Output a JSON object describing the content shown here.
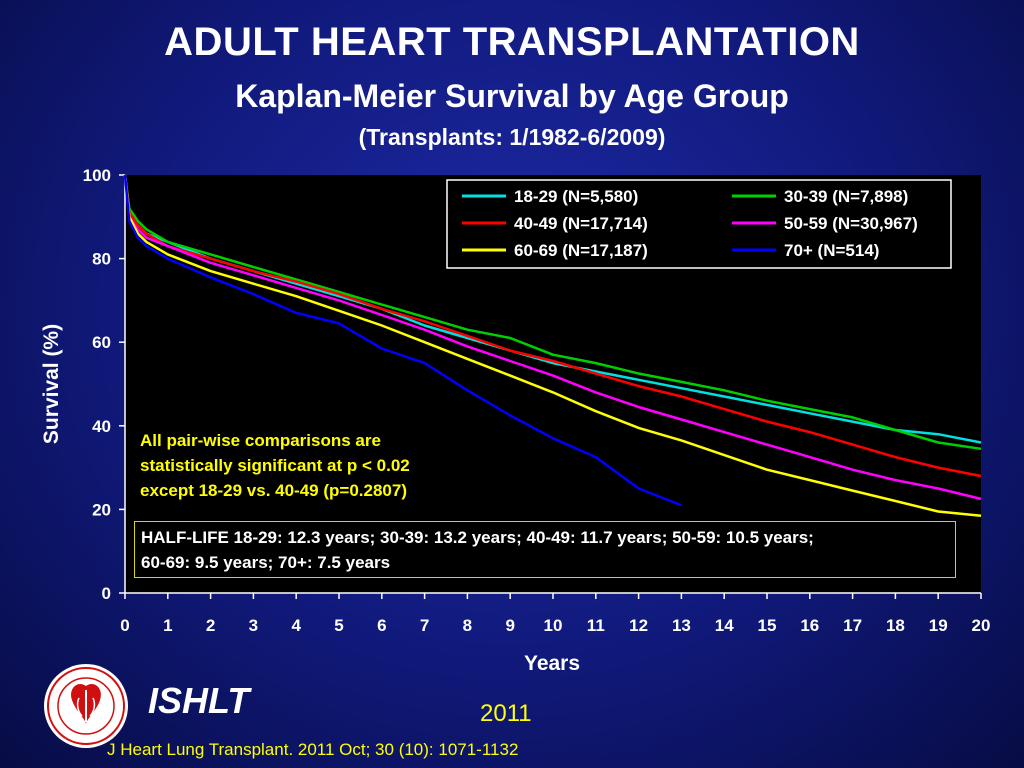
{
  "header": {
    "title": "ADULT HEART TRANSPLANTATION",
    "subtitle": "Kaplan-Meier Survival by Age Group",
    "period": "(Transplants: 1/1982-6/2009)"
  },
  "annotation": {
    "lines": [
      "All pair-wise comparisons are",
      "statistically significant at p < 0.02",
      "except 18-29 vs. 40-49 (p=0.2807)"
    ]
  },
  "half_life": {
    "lines": [
      "HALF-LIFE  18-29: 12.3 years; 30-39: 13.2 years; 40-49: 11.7 years; 50-59: 10.5 years;",
      "60-69: 9.5 years; 70+: 7.5 years"
    ]
  },
  "footer": {
    "org": "ISHLT",
    "year": "2011",
    "citation": "J Heart Lung Transplant. 2011 Oct; 30 (10): 1071-1132",
    "logo_icon": "ishlt-seal-icon"
  },
  "chart_data": {
    "type": "line",
    "xlabel": "Years",
    "ylabel": "Survival (%)",
    "xlim": [
      0,
      20
    ],
    "ylim": [
      0,
      100
    ],
    "xticks": [
      0,
      1,
      2,
      3,
      4,
      5,
      6,
      7,
      8,
      9,
      10,
      11,
      12,
      13,
      14,
      15,
      16,
      17,
      18,
      19,
      20
    ],
    "yticks": [
      0,
      20,
      40,
      60,
      80,
      100
    ],
    "grid": false,
    "legend_position": "top-right",
    "series": [
      {
        "name": "18-29 (N=5,580)",
        "color": "#00e0e0",
        "x": [
          0,
          0.1,
          0.3,
          0.5,
          1,
          2,
          3,
          4,
          5,
          6,
          7,
          8,
          9,
          10,
          11,
          12,
          13,
          14,
          15,
          16,
          17,
          18,
          19,
          20
        ],
        "y": [
          100,
          91,
          88,
          86,
          84,
          80,
          77,
          74,
          71,
          68,
          64,
          61,
          58,
          55,
          53,
          51,
          49,
          47,
          45,
          43,
          41,
          39,
          38,
          36
        ]
      },
      {
        "name": "30-39 (N=7,898)",
        "color": "#00d000",
        "x": [
          0,
          0.1,
          0.3,
          0.5,
          1,
          2,
          3,
          4,
          5,
          6,
          7,
          8,
          9,
          10,
          11,
          12,
          13,
          14,
          15,
          16,
          17,
          18,
          19,
          20
        ],
        "y": [
          100,
          92,
          89,
          87,
          84,
          81,
          78,
          75,
          72,
          69,
          66,
          63,
          61,
          57,
          55,
          52.5,
          50.5,
          48.5,
          46,
          44,
          42,
          39,
          36,
          34.5
        ]
      },
      {
        "name": "40-49 (N=17,714)",
        "color": "#ff0000",
        "x": [
          0,
          0.1,
          0.3,
          0.5,
          1,
          2,
          3,
          4,
          5,
          6,
          7,
          8,
          9,
          10,
          11,
          12,
          13,
          14,
          15,
          16,
          17,
          18,
          19,
          20
        ],
        "y": [
          100,
          91,
          88,
          86,
          83,
          80,
          77,
          74.5,
          71.5,
          68,
          65,
          61.5,
          58,
          55.5,
          52.5,
          49.5,
          47,
          44,
          41,
          38.5,
          35.5,
          32.5,
          30,
          28
        ]
      },
      {
        "name": "50-59 (N=30,967)",
        "color": "#ff00ff",
        "x": [
          0,
          0.1,
          0.3,
          0.5,
          1,
          2,
          3,
          4,
          5,
          6,
          7,
          8,
          9,
          10,
          11,
          12,
          13,
          14,
          15,
          16,
          17,
          18,
          19,
          20
        ],
        "y": [
          100,
          90,
          87,
          85,
          83,
          79,
          76,
          73,
          70,
          66.5,
          63,
          59,
          55.5,
          52,
          48,
          44.5,
          41.5,
          38.5,
          35.5,
          32.5,
          29.5,
          27,
          25,
          22.5
        ]
      },
      {
        "name": "60-69 (N=17,187)",
        "color": "#ffff00",
        "x": [
          0,
          0.1,
          0.3,
          0.5,
          1,
          2,
          3,
          4,
          5,
          6,
          7,
          8,
          9,
          10,
          11,
          12,
          13,
          14,
          15,
          16,
          17,
          18,
          19,
          20
        ],
        "y": [
          100,
          90,
          86,
          84,
          81,
          77,
          74,
          71,
          67.5,
          64,
          60,
          56,
          52,
          48,
          43.5,
          39.5,
          36.5,
          33,
          29.5,
          27,
          24.5,
          22,
          19.5,
          18.5
        ]
      },
      {
        "name": "70+ (N=514)",
        "color": "#0000ff",
        "x": [
          0,
          0.1,
          0.3,
          0.5,
          1,
          2,
          3,
          4,
          5,
          6,
          7,
          8,
          9,
          10,
          11,
          12,
          13
        ],
        "y": [
          100,
          89,
          85,
          83,
          80,
          75.5,
          71.5,
          67,
          64.5,
          58.5,
          55,
          48.5,
          42.5,
          37,
          32.5,
          25,
          21
        ]
      }
    ]
  }
}
